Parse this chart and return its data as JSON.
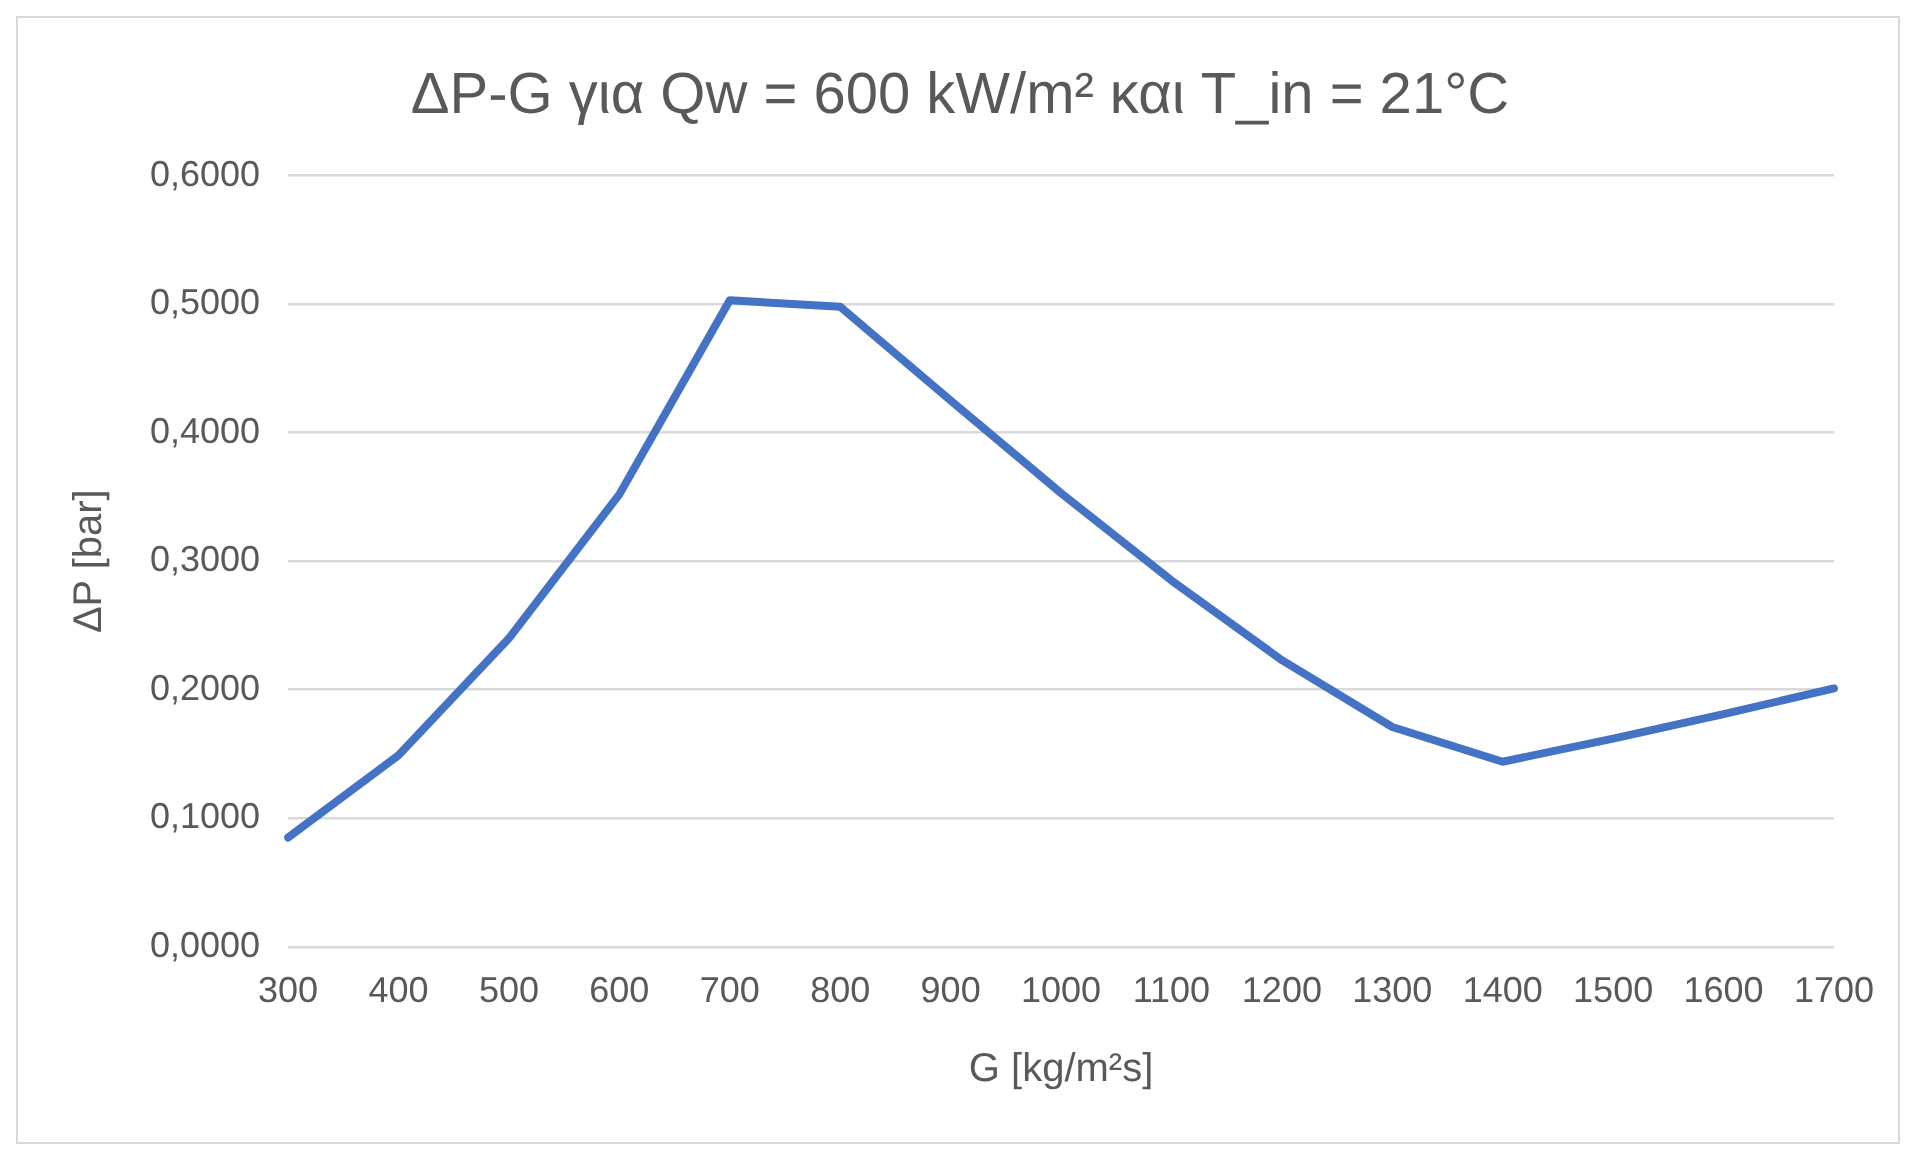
{
  "chart_data": {
    "type": "line",
    "title": "ΔP-G για Qw = 600 kW/m² και T_in = 21°C",
    "xlabel": "G [kg/m²s]",
    "ylabel": "ΔP [bar]",
    "categories": [
      "300",
      "400",
      "500",
      "600",
      "700",
      "800",
      "900",
      "1000",
      "1100",
      "1200",
      "1300",
      "1400",
      "1500",
      "1600",
      "1700"
    ],
    "series": [
      {
        "color": "#4472c4",
        "values": [
          0.085,
          0.149,
          0.24,
          0.352,
          0.503,
          0.498,
          0.425,
          0.353,
          0.285,
          0.223,
          0.171,
          0.144,
          0.162,
          0.181,
          0.201
        ]
      }
    ],
    "ylim": [
      0,
      0.6
    ],
    "yticks": [
      {
        "value": 0,
        "label": "0,0000"
      },
      {
        "value": 0.1,
        "label": "0,1000"
      },
      {
        "value": 0.2,
        "label": "0,2000"
      },
      {
        "value": 0.3,
        "label": "0,3000"
      },
      {
        "value": 0.4,
        "label": "0,4000"
      },
      {
        "value": 0.5,
        "label": "0,5000"
      },
      {
        "value": 0.6,
        "label": "0,6000"
      }
    ],
    "grid": "y",
    "legend": false,
    "marker": "none",
    "line_style": "solid"
  }
}
